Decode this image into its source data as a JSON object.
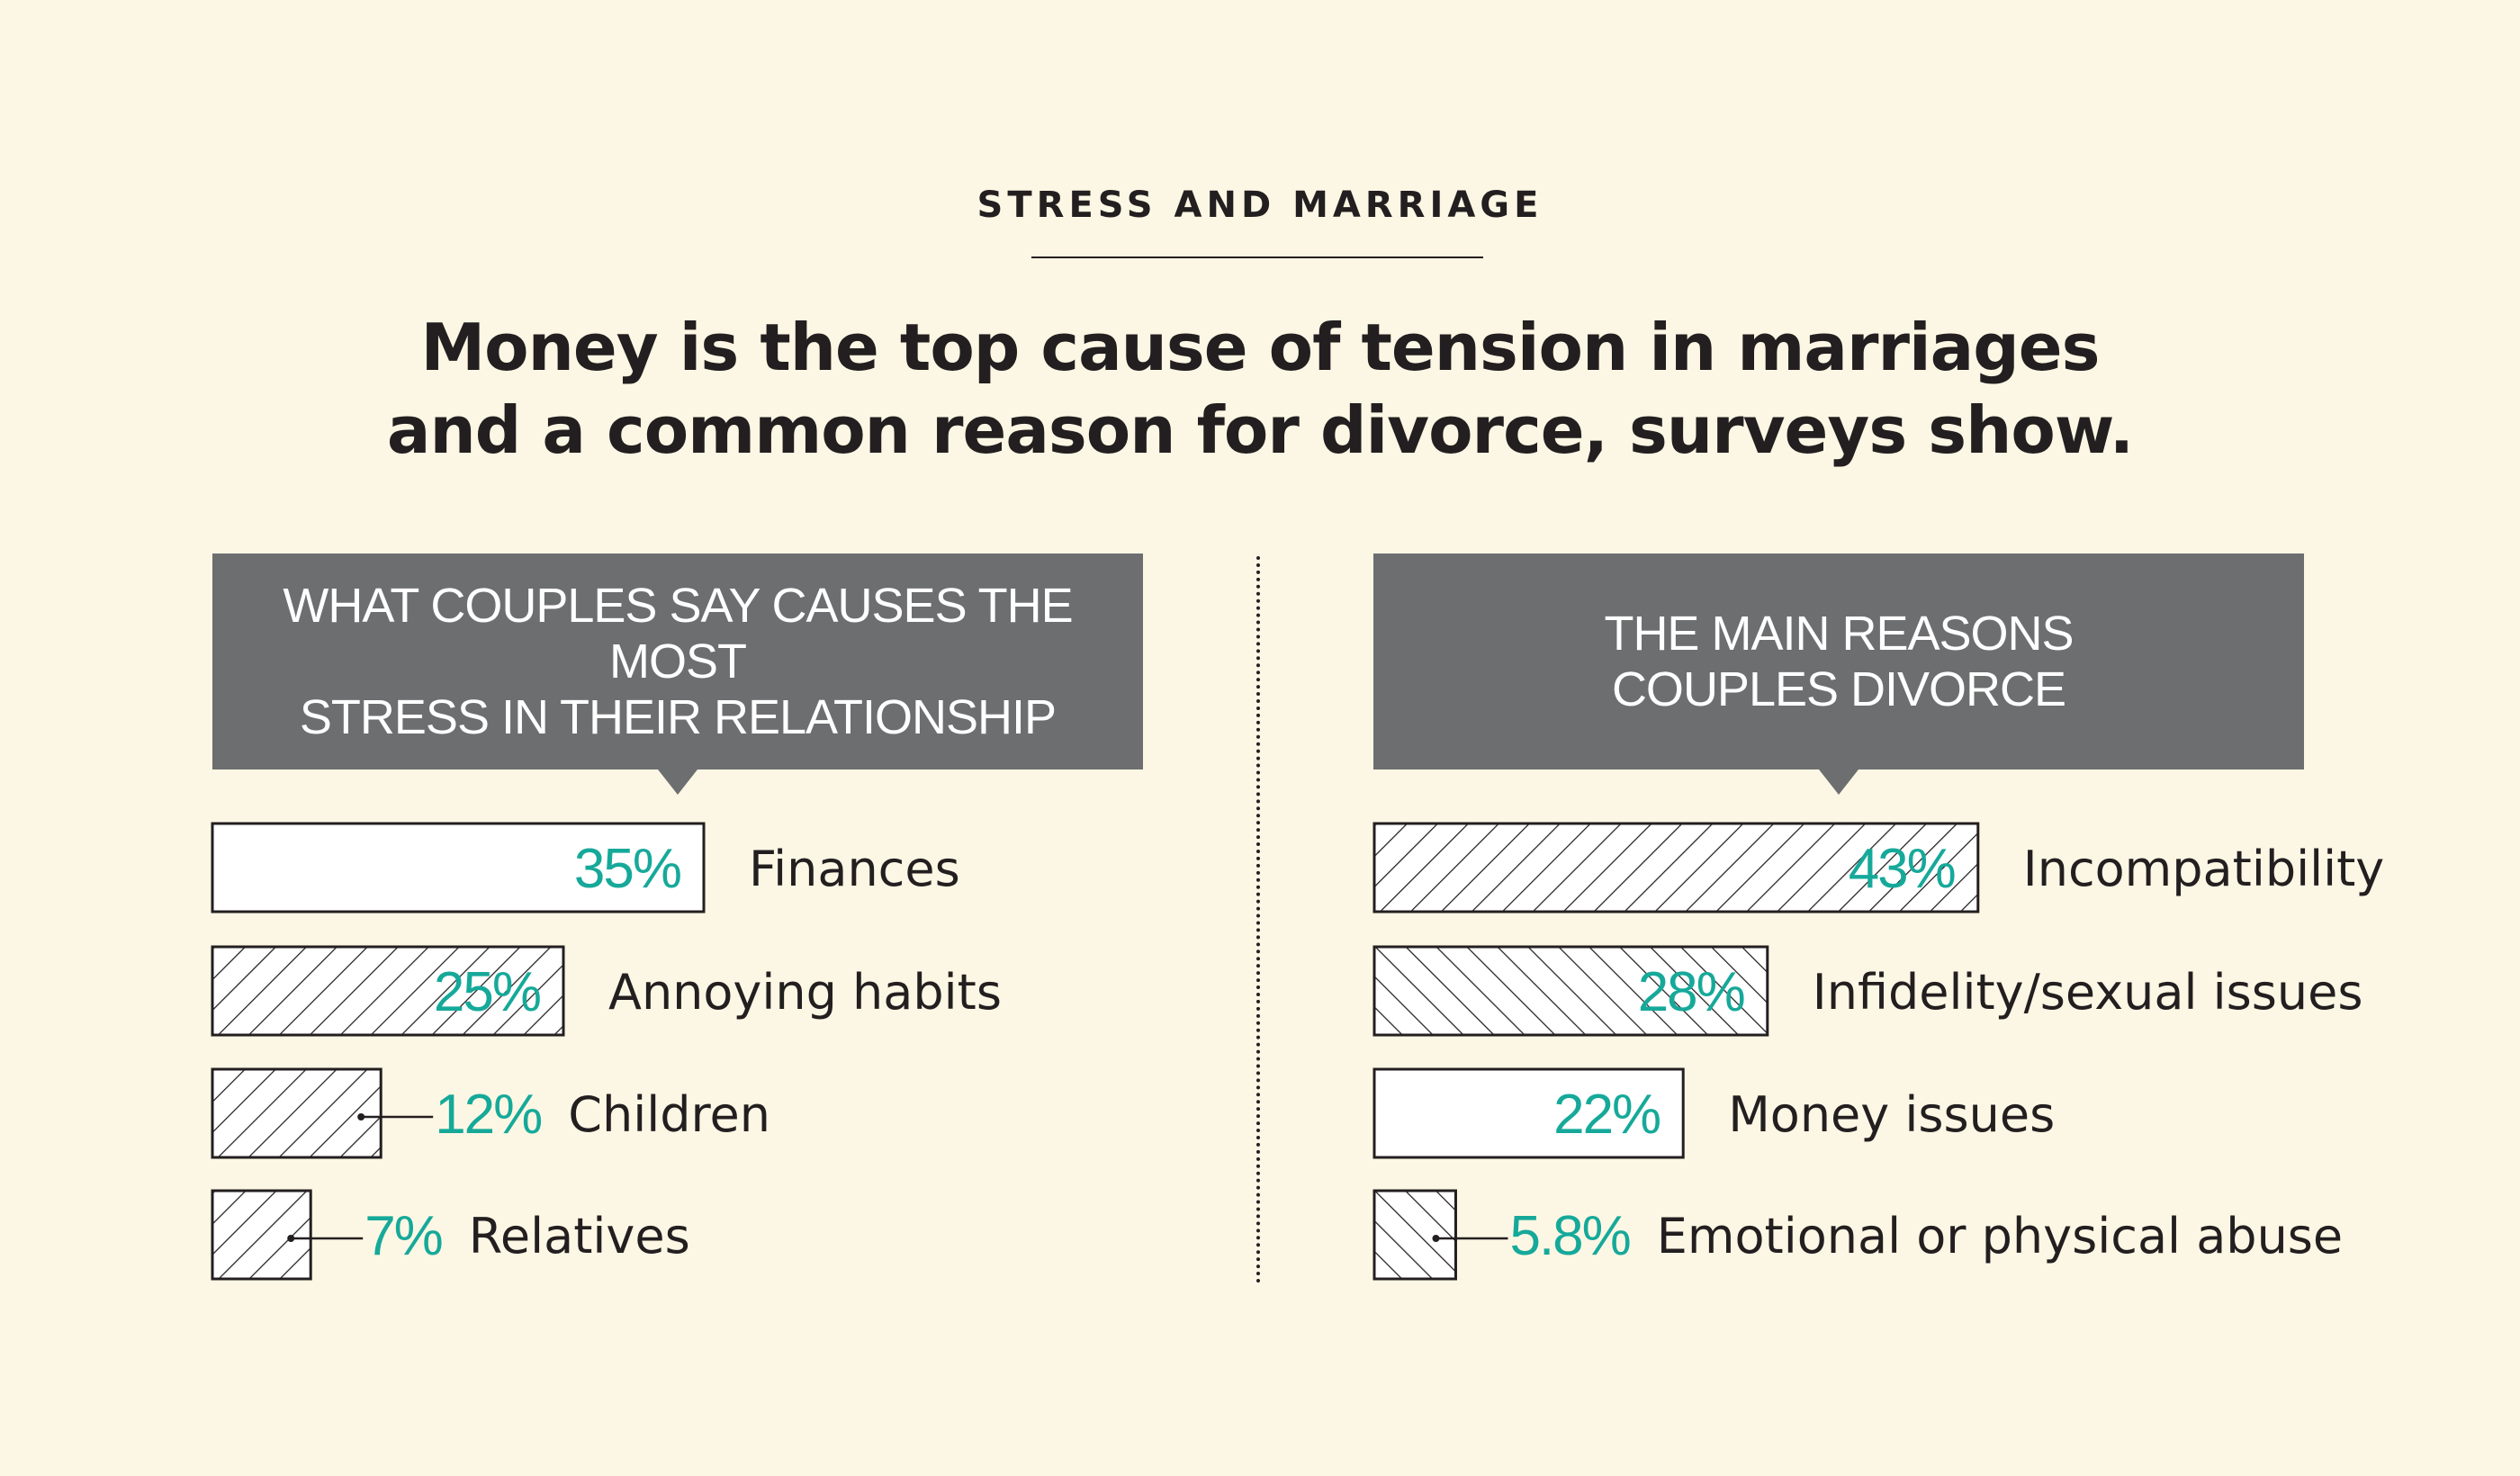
{
  "kicker": "STRESS AND MARRIAGE",
  "headline": {
    "line1": "Money is the top cause of tension in marriages",
    "line2": "and a common reason for divorce, surveys show."
  },
  "colors": {
    "background": "#fcf7e4",
    "panel": "#6d6e70",
    "accent": "#16a99a",
    "ink": "#231f20"
  },
  "chart_data": [
    {
      "type": "bar",
      "orientation": "horizontal",
      "title_line1": "WHAT COUPLES SAY CAUSES THE MOST",
      "title_line2": "STRESS IN THEIR RELATIONSHIP",
      "unit": "%",
      "categories": [
        "Finances",
        "Annoying habits",
        "Children",
        "Relatives"
      ],
      "values": [
        35,
        25,
        12,
        7
      ],
      "labels": [
        "35%",
        "25%",
        "12%",
        "7%"
      ],
      "fills": [
        "solid",
        "hatch-down",
        "hatch-down",
        "hatch-down"
      ]
    },
    {
      "type": "bar",
      "orientation": "horizontal",
      "title_line1": "THE MAIN REASONS",
      "title_line2": "COUPLES DIVORCE",
      "unit": "%",
      "categories": [
        "Incompatibility",
        "Infidelity/sexual issues",
        "Money issues",
        "Emotional or physical abuse"
      ],
      "values": [
        43,
        28,
        22,
        5.8
      ],
      "labels": [
        "43%",
        "28%",
        "22%",
        "5.8%"
      ],
      "fills": [
        "hatch-down",
        "hatch-up",
        "solid",
        "hatch-up"
      ]
    }
  ]
}
